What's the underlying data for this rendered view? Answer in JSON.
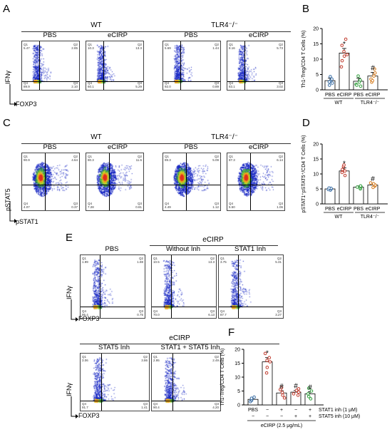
{
  "panelA": {
    "letter": "A",
    "groups": [
      "WT",
      "TLR4⁻/⁻"
    ],
    "conditions": [
      "PBS",
      "eCIRP",
      "PBS",
      "eCIRP"
    ],
    "y_axis": "IFNγ",
    "x_axis": "FOXP3",
    "plots": [
      {
        "q1": "Q1\n5.47",
        "q2": "Q2\n2.85",
        "q3": "Q3\n2.10",
        "q4": "Q4\n89.9"
      },
      {
        "q1": "Q1\n10.3",
        "q2": "Q2\n13.3",
        "q3": "Q3\n5.29",
        "q4": "Q4\n60.1"
      },
      {
        "q1": "Q1\n5.69",
        "q2": "Q2\n1.44",
        "q3": "Q3\n0.89",
        "q4": "Q4\n92.0"
      },
      {
        "q1": "Q1\n8.16",
        "q2": "Q2\n5.73",
        "q3": "Q3\n3.02",
        "q4": "Q4\n83.1"
      }
    ]
  },
  "panelB": {
    "letter": "B",
    "ylabel": "Th1-Treg/CD4 T Cells (%)",
    "yticks": [
      "0",
      "5",
      "10",
      "15",
      "20"
    ],
    "xlabels": [
      "PBS",
      "eCIRP",
      "PBS",
      "eCIRP"
    ],
    "groups": [
      "WT",
      "TLR4⁻/⁻"
    ],
    "sig": [
      "*",
      "#"
    ]
  },
  "panelC": {
    "letter": "C",
    "groups": [
      "WT",
      "TLR4⁻/⁻"
    ],
    "conditions": [
      "PBS",
      "eCIRP",
      "PBS",
      "eCIRP"
    ],
    "y_axis": "pSTAT5",
    "x_axis": "pSTAT1",
    "plots": [
      {
        "q1": "Q1\n90.9",
        "q2": "Q2\n4.64",
        "q3": "Q3\n0.37",
        "q4": "Q4\n4.07"
      },
      {
        "q1": "Q1\n80.3",
        "q2": "Q2\n11.6",
        "q3": "Q3\n0.81",
        "q4": "Q4\n7.28"
      },
      {
        "q1": "Q1\n89.3",
        "q2": "Q2\n5.09",
        "q3": "Q3\n1.12",
        "q4": "Q4\n4.49"
      },
      {
        "q1": "Q1\n87.3",
        "q2": "Q2\n6.14",
        "q3": "Q3\n1.06",
        "q4": "Q4\n5.50"
      }
    ]
  },
  "panelD": {
    "letter": "D",
    "ylabel": "pSTAT1⁺pSTAT5⁺/CD4 T Cells (%)",
    "yticks": [
      "0",
      "5",
      "10",
      "15",
      "20"
    ],
    "xlabels": [
      "PBS",
      "eCIRP",
      "PBS",
      "eCIRP"
    ],
    "groups": [
      "WT",
      "TLR4⁻/⁻"
    ],
    "sig": [
      "*",
      "#"
    ]
  },
  "panelE": {
    "letter": "E",
    "group": "eCIRP",
    "group2": "eCIRP",
    "conditions": [
      "PBS",
      "Without Inh",
      "STAT1 Inh",
      "STAT5 Inh",
      "STAT1 + STAT5  Inh"
    ],
    "y_axis": "IFNγ",
    "x_axis": "FOXP3",
    "plots": [
      {
        "q1": "Q1\n1.99",
        "q2": "Q2\n1.88",
        "q3": "Q3\n0.75",
        "q4": "Q4\n95.4"
      },
      {
        "q1": "Q1\n10.5",
        "q2": "Q2\n13.3",
        "q3": "Q3\n6.13",
        "q4": "Q4\n70.0"
      },
      {
        "q1": "Q1\n3.75",
        "q2": "Q2\n5.31",
        "q3": "Q3\n3.27",
        "q4": "Q4\n87.7"
      },
      {
        "q1": "Q1\n3.06",
        "q2": "Q2\n3.86",
        "q3": "Q3\n1.41",
        "q4": "Q4\n91.7"
      },
      {
        "q1": "Q1\n2.95",
        "q2": "Q2\n2.49",
        "q3": "Q3\n4.20",
        "q4": "Q4\n90.4"
      }
    ]
  },
  "panelF": {
    "letter": "F",
    "ylabel": "Th1-Treg/CD4 T Cells (%)",
    "yticks": [
      "0",
      "5",
      "10",
      "15",
      "20"
    ],
    "row1_label": "STAT1 inh (1 μM)",
    "row2_label": "STAT5 inh (10 μM)",
    "pbs_label": "PBS",
    "row1_signs": [
      "−",
      "+",
      "−",
      "+"
    ],
    "row2_signs": [
      "−",
      "−",
      "+",
      "+"
    ],
    "ecirp_label": "eCIRP (2.5 μg/mL)",
    "sig": [
      "*",
      "#",
      "#",
      "#"
    ]
  },
  "chart_data": [
    {
      "type": "bar",
      "panel": "B",
      "categories": [
        "WT PBS",
        "WT eCIRP",
        "TLR4-/- PBS",
        "TLR4-/- eCIRP"
      ],
      "values": [
        3.0,
        12.0,
        2.8,
        4.5
      ],
      "errors": [
        0.8,
        1.5,
        1.0,
        1.2
      ],
      "points": [
        [
          1.5,
          2.2,
          2.8,
          3.5,
          4.3,
          2.6
        ],
        [
          7.5,
          9.5,
          11.5,
          12.5,
          14.5,
          16.5,
          11
        ],
        [
          1.2,
          1.8,
          2.5,
          3.2,
          4.5,
          1.5
        ],
        [
          2.5,
          3.5,
          4.5,
          5.5,
          6.8,
          3.0
        ]
      ],
      "colors": [
        "#3a6ea5",
        "#c0392b",
        "#2e9d3a",
        "#d4791a"
      ],
      "ylabel": "Th1-Treg/CD4 T Cells (%)",
      "ylim": [
        0,
        20
      ]
    },
    {
      "type": "bar",
      "panel": "D",
      "categories": [
        "WT PBS",
        "WT eCIRP",
        "TLR4-/- PBS",
        "TLR4-/- eCIRP"
      ],
      "values": [
        5.0,
        11.0,
        5.6,
        6.3
      ],
      "errors": [
        0.4,
        1.0,
        0.4,
        0.6
      ],
      "points": [
        [
          4.6,
          4.8,
          5.0,
          5.2,
          5.3
        ],
        [
          9.5,
          10.5,
          11,
          11.5,
          12.5,
          13
        ],
        [
          5.0,
          5.4,
          5.6,
          5.8,
          6.0
        ],
        [
          5.5,
          6.0,
          6.3,
          6.7,
          7.0
        ]
      ],
      "colors": [
        "#3a6ea5",
        "#c0392b",
        "#2e9d3a",
        "#d4791a"
      ],
      "ylabel": "pSTAT1+pSTAT5+/CD4 T Cells (%)",
      "ylim": [
        0,
        20
      ]
    },
    {
      "type": "bar",
      "panel": "F",
      "categories": [
        "PBS",
        "eCIRP",
        "eCIRP+STAT1 inh",
        "eCIRP+STAT5 inh",
        "eCIRP+STAT1+STAT5 inh"
      ],
      "values": [
        2.0,
        15.5,
        4.3,
        4.6,
        4.0
      ],
      "errors": [
        0.5,
        1.5,
        0.8,
        0.6,
        0.8
      ],
      "points": [
        [
          1.2,
          1.6,
          2.0,
          2.4,
          2.8
        ],
        [
          11.5,
          13.5,
          15.5,
          17,
          18.5,
          16
        ],
        [
          2.5,
          3.5,
          4.5,
          5.5,
          6.2
        ],
        [
          3.5,
          4.0,
          4.6,
          5.2,
          5.8
        ],
        [
          2.2,
          3.0,
          4.0,
          5.0,
          6.0
        ]
      ],
      "colors": [
        "#3a6ea5",
        "#c0392b",
        "#c0392b",
        "#c0392b",
        "#2e9d3a"
      ],
      "ylabel": "Th1-Treg/CD4 T Cells (%)",
      "ylim": [
        0,
        20
      ]
    }
  ]
}
